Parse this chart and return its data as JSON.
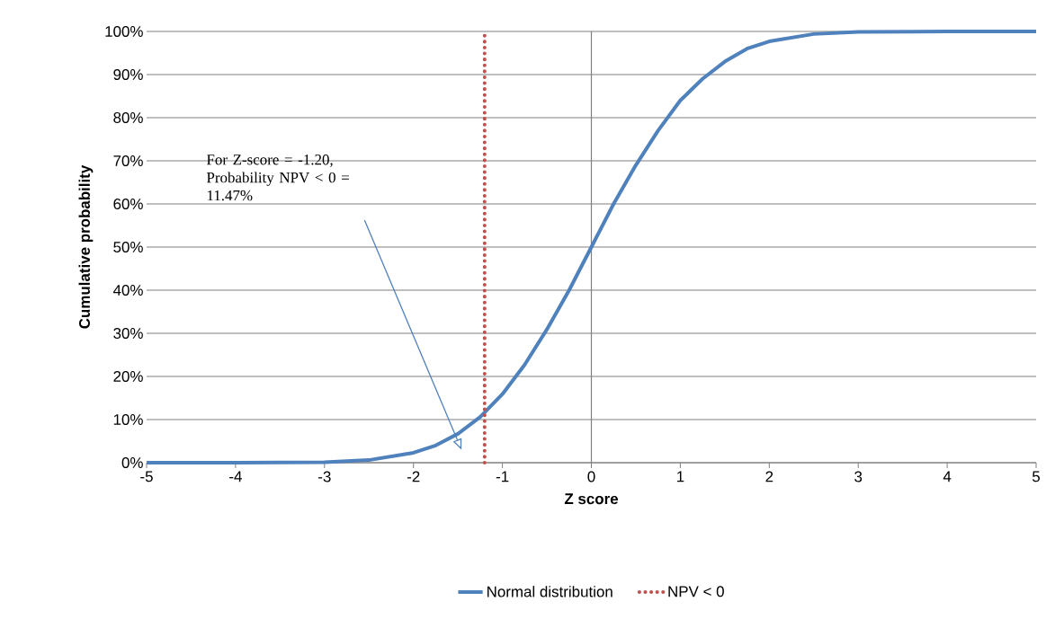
{
  "chart_data": {
    "type": "line",
    "xlabel": "Z score",
    "ylabel": "Cumulative probability",
    "xlim": [
      -5,
      5
    ],
    "xticks": [
      -5,
      -4,
      -3,
      -2,
      -1,
      0,
      1,
      2,
      3,
      4,
      5
    ],
    "ylim": [
      0,
      100
    ],
    "yticks": [
      {
        "value": 0,
        "label": "0%"
      },
      {
        "value": 10,
        "label": "10%"
      },
      {
        "value": 20,
        "label": "20%"
      },
      {
        "value": 30,
        "label": "30%"
      },
      {
        "value": 40,
        "label": "40%"
      },
      {
        "value": 50,
        "label": "50%"
      },
      {
        "value": 60,
        "label": "60%"
      },
      {
        "value": 70,
        "label": "70%"
      },
      {
        "value": 80,
        "label": "80%"
      },
      {
        "value": 90,
        "label": "90%"
      },
      {
        "value": 100,
        "label": "100%"
      }
    ],
    "grid": "y",
    "legend": "bottom",
    "ref_lines": [
      {
        "axis": "x",
        "value": 0,
        "color": "#808080"
      }
    ],
    "annotations": [
      "For Z-score = -1.20, Probability NPV < 0 = 11.47%"
    ],
    "series": [
      {
        "name": "Normal distribution",
        "color": "#4f81bd",
        "line_style": "solid",
        "x": [
          -5,
          -4,
          -3,
          -2.5,
          -2,
          -1.75,
          -1.5,
          -1.25,
          -1,
          -0.75,
          -0.5,
          -0.25,
          0,
          0.25,
          0.5,
          0.75,
          1,
          1.25,
          1.5,
          1.75,
          2,
          2.5,
          3,
          4,
          5
        ],
        "values": [
          0,
          0,
          0.1,
          0.6,
          2.3,
          4,
          6.7,
          10.6,
          15.9,
          22.7,
          30.9,
          40,
          50,
          60,
          69,
          77,
          84,
          89,
          93,
          96,
          97.7,
          99.4,
          99.9,
          100,
          100
        ]
      },
      {
        "name": "NPV < 0",
        "color": "#c0504d",
        "line_style": "dotted",
        "x": [
          -1.2,
          -1.2
        ],
        "values": [
          0,
          99
        ]
      }
    ]
  }
}
